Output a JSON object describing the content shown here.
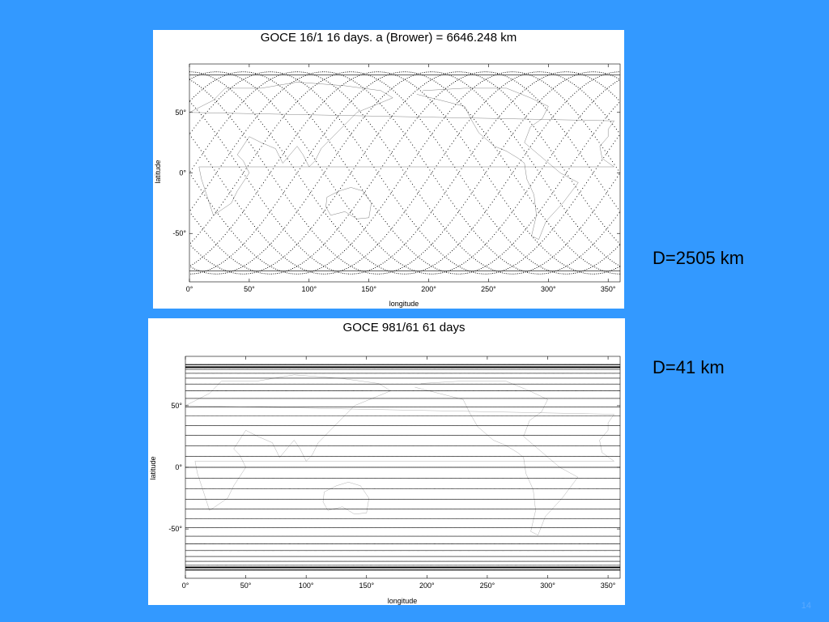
{
  "slide": {
    "page_number": "14",
    "background_color": "#3399ff"
  },
  "labels": {
    "top_distance": "D=2505 km",
    "bottom_distance": "D=41 km"
  },
  "chart_data": [
    {
      "type": "scatter",
      "title": "GOCE 16/1 16 days. a (Brower) = 6646.248 km",
      "xlabel": "longitude",
      "ylabel": "latitude",
      "xlim": [
        0,
        360
      ],
      "ylim": [
        -90,
        90
      ],
      "x_ticks": [
        0,
        50,
        100,
        150,
        200,
        250,
        300,
        350
      ],
      "x_tick_labels": [
        "0°",
        "50°",
        "100°",
        "150°",
        "200°",
        "250°",
        "300°",
        "350°"
      ],
      "y_ticks": [
        50,
        0,
        -50
      ],
      "y_tick_labels": [
        "50°",
        "0°",
        "-50°"
      ],
      "max_latitude": 83.5,
      "ascending_passes_per_cycle": 16,
      "repeat_days": 16,
      "semi_major_axis_km": 6646.248,
      "track_spacing_km": 2505,
      "has_coastlines": true,
      "grid": false
    },
    {
      "type": "scatter",
      "title": "GOCE 981/61 61 days",
      "xlabel": "longitude",
      "ylabel": "latitude",
      "xlim": [
        0,
        360
      ],
      "ylim": [
        -90,
        90
      ],
      "x_ticks": [
        0,
        50,
        100,
        150,
        200,
        250,
        300,
        350
      ],
      "x_tick_labels": [
        "0°",
        "50°",
        "100°",
        "150°",
        "200°",
        "250°",
        "300°",
        "350°"
      ],
      "y_ticks": [
        50,
        0,
        -50
      ],
      "y_tick_labels": [
        "50°",
        "0°",
        "-50°"
      ],
      "max_latitude": 83.5,
      "ascending_passes_per_cycle": 981,
      "repeat_days": 61,
      "track_spacing_km": 41,
      "has_coastlines": true,
      "grid": false
    }
  ]
}
